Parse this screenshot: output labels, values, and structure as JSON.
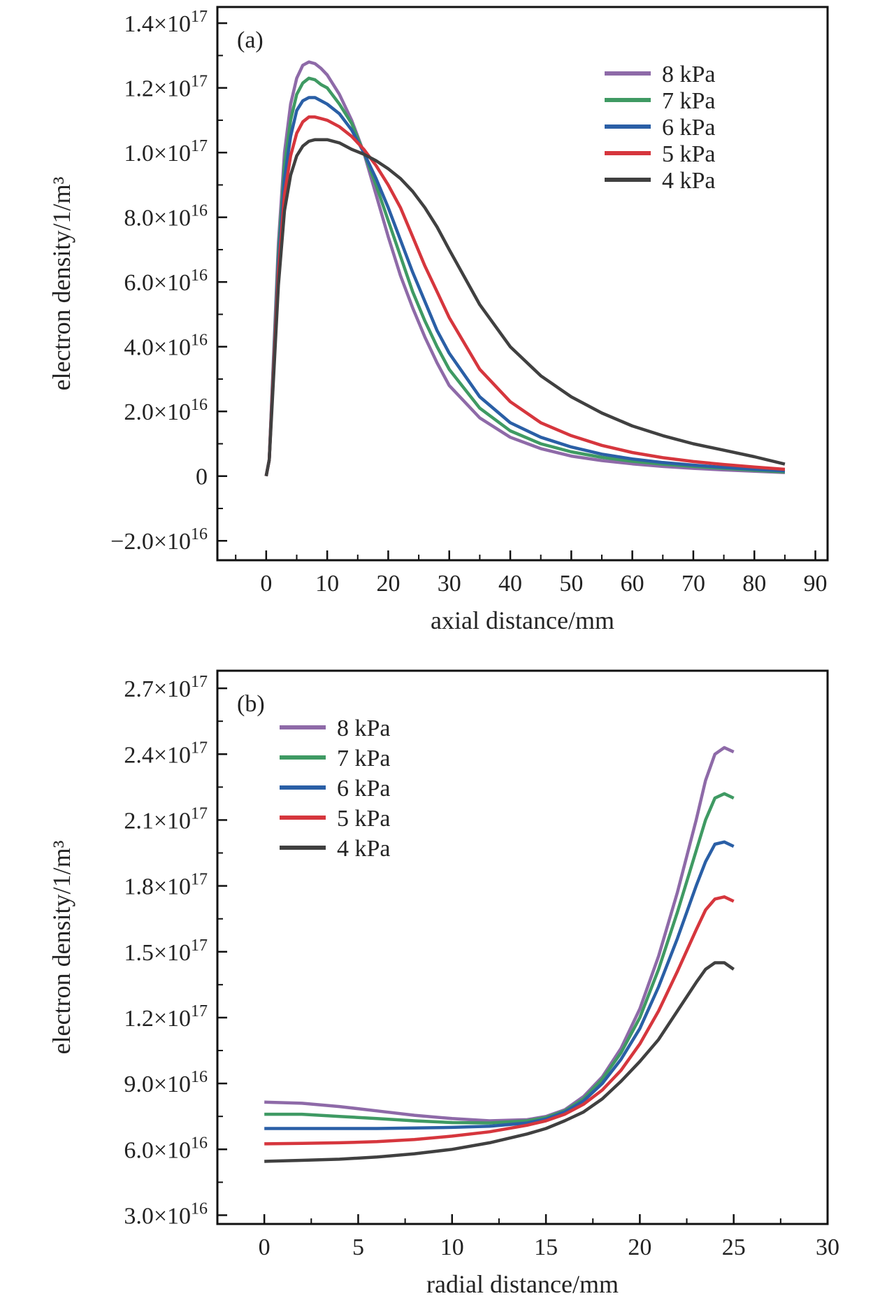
{
  "colors": {
    "8 kPa": "#8e6aa8",
    "7 kPa": "#3f9a63",
    "6 kPa": "#2a5fa6",
    "5 kPa": "#d6363d",
    "4 kPa": "#404040"
  },
  "chart_data": [
    {
      "type": "line",
      "panel_label": "(a)",
      "xlabel": "axial distance/mm",
      "ylabel": "electron density/1/m³",
      "xlim": [
        -8,
        92
      ],
      "ylim": [
        -2.6e+16,
        1.45e+17
      ],
      "xticks": [
        0,
        10,
        20,
        30,
        40,
        50,
        60,
        70,
        80,
        90
      ],
      "xtick_labels": [
        "0",
        "10",
        "20",
        "30",
        "40",
        "50",
        "60",
        "70",
        "80",
        "90"
      ],
      "yticks": [
        -2e+16,
        0,
        2e+16,
        4e+16,
        6e+16,
        8e+16,
        1e+17,
        1.2e+17,
        1.4e+17
      ],
      "ytick_labels": [
        {
          "mant": "−2.0×10",
          "exp": "16"
        },
        {
          "mant": "0",
          "exp": ""
        },
        {
          "mant": "2.0×10",
          "exp": "16"
        },
        {
          "mant": "4.0×10",
          "exp": "16"
        },
        {
          "mant": "6.0×10",
          "exp": "16"
        },
        {
          "mant": "8.0×10",
          "exp": "16"
        },
        {
          "mant": "1.0×10",
          "exp": "17"
        },
        {
          "mant": "1.2×10",
          "exp": "17"
        },
        {
          "mant": "1.4×10",
          "exp": "17"
        }
      ],
      "legend_position": "top-right",
      "series": [
        {
          "name": "8 kPa",
          "x": [
            0,
            0.5,
            1,
            2,
            3,
            4,
            5,
            6,
            7,
            8,
            9,
            10,
            12,
            14,
            16,
            18,
            20,
            22,
            24,
            26,
            28,
            30,
            35,
            40,
            45,
            50,
            55,
            60,
            65,
            70,
            75,
            80,
            85
          ],
          "y": [
            0,
            5000000000000000.0,
            2.8e+16,
            7.2e+16,
            1e+17,
            1.15e+17,
            1.23e+17,
            1.27e+17,
            1.28e+17,
            1.275e+17,
            1.26e+17,
            1.24e+17,
            1.18e+17,
            1.1e+17,
            1e+17,
            8.7e+16,
            7.4e+16,
            6.2e+16,
            5.2e+16,
            4.3e+16,
            3.5e+16,
            2.8e+16,
            1.8e+16,
            1.2e+16,
            8500000000000000.0,
            6200000000000000.0,
            4800000000000000.0,
            3800000000000000.0,
            3000000000000000.0,
            2400000000000000.0,
            1900000000000000.0,
            1500000000000000.0,
            1100000000000000.0
          ]
        },
        {
          "name": "7 kPa",
          "x": [
            0,
            0.5,
            1,
            2,
            3,
            4,
            5,
            6,
            7,
            8,
            9,
            10,
            12,
            14,
            16,
            18,
            20,
            22,
            24,
            26,
            28,
            30,
            35,
            40,
            45,
            50,
            55,
            60,
            65,
            70,
            75,
            80,
            85
          ],
          "y": [
            0,
            5000000000000000.0,
            2.7e+16,
            6.9e+16,
            9.6e+16,
            1.1e+17,
            1.18e+17,
            1.215e+17,
            1.23e+17,
            1.225e+17,
            1.21e+17,
            1.2e+17,
            1.15e+17,
            1.09e+17,
            1e+17,
            9e+16,
            7.9e+16,
            6.8e+16,
            5.7e+16,
            4.8e+16,
            4e+16,
            3.3e+16,
            2.1e+16,
            1.4e+16,
            1e+16,
            7500000000000000.0,
            5800000000000000.0,
            4600000000000000.0,
            3700000000000000.0,
            3000000000000000.0,
            2400000000000000.0,
            1800000000000000.0,
            1300000000000000.0
          ]
        },
        {
          "name": "6 kPa",
          "x": [
            0,
            0.5,
            1,
            2,
            3,
            4,
            5,
            6,
            7,
            8,
            9,
            10,
            12,
            14,
            16,
            18,
            20,
            22,
            24,
            26,
            28,
            30,
            35,
            40,
            45,
            50,
            55,
            60,
            65,
            70,
            75,
            80,
            85
          ],
          "y": [
            0,
            5000000000000000.0,
            2.6e+16,
            6.6e+16,
            9.2e+16,
            1.05e+17,
            1.13e+17,
            1.16e+17,
            1.17e+17,
            1.17e+17,
            1.16e+17,
            1.15e+17,
            1.12e+17,
            1.07e+17,
            1e+17,
            9.2e+16,
            8.3e+16,
            7.3e+16,
            6.3e+16,
            5.4e+16,
            4.5e+16,
            3.8e+16,
            2.45e+16,
            1.65e+16,
            1.2e+16,
            9000000000000000.0,
            6800000000000000.0,
            5300000000000000.0,
            4200000000000000.0,
            3400000000000000.0,
            2700000000000000.0,
            2100000000000000.0,
            1600000000000000.0
          ]
        },
        {
          "name": "5 kPa",
          "x": [
            0,
            0.5,
            1,
            2,
            3,
            4,
            5,
            6,
            7,
            8,
            9,
            10,
            12,
            14,
            16,
            18,
            20,
            22,
            24,
            26,
            28,
            30,
            35,
            40,
            45,
            50,
            55,
            60,
            65,
            70,
            75,
            80,
            85
          ],
          "y": [
            0,
            5000000000000000.0,
            2.5e+16,
            6.3e+16,
            8.7e+16,
            9.9e+16,
            1.06e+17,
            1.095e+17,
            1.11e+17,
            1.11e+17,
            1.105e+17,
            1.1e+17,
            1.08e+17,
            1.05e+17,
            1.01e+17,
            9.6e+16,
            9e+16,
            8.3e+16,
            7.4e+16,
            6.5e+16,
            5.7e+16,
            4.9e+16,
            3.3e+16,
            2.3e+16,
            1.65e+16,
            1.25e+16,
            9500000000000000.0,
            7300000000000000.0,
            5700000000000000.0,
            4500000000000000.0,
            3600000000000000.0,
            2800000000000000.0,
            2100000000000000.0
          ]
        },
        {
          "name": "4 kPa",
          "x": [
            0,
            0.5,
            1,
            2,
            3,
            4,
            5,
            6,
            7,
            8,
            9,
            10,
            12,
            14,
            16,
            18,
            20,
            22,
            24,
            26,
            28,
            30,
            35,
            40,
            45,
            50,
            55,
            60,
            65,
            70,
            75,
            80,
            85
          ],
          "y": [
            0,
            5000000000000000.0,
            2.3e+16,
            5.9e+16,
            8.2e+16,
            9.3e+16,
            9.9e+16,
            1.02e+17,
            1.035e+17,
            1.04e+17,
            1.04e+17,
            1.04e+17,
            1.03e+17,
            1.01e+17,
            9.95e+16,
            9.75e+16,
            9.5e+16,
            9.2e+16,
            8.8e+16,
            8.3e+16,
            7.7e+16,
            7e+16,
            5.3e+16,
            4e+16,
            3.1e+16,
            2.45e+16,
            1.95e+16,
            1.55e+16,
            1.25e+16,
            1e+16,
            8000000000000000.0,
            6000000000000000.0,
            3700000000000000.0
          ]
        }
      ]
    },
    {
      "type": "line",
      "panel_label": "(b)",
      "xlabel": "radial distance/mm",
      "ylabel": "electron density/1/m³",
      "xlim": [
        -2.5,
        30
      ],
      "ylim": [
        2.6e+16,
        2.78e+17
      ],
      "xticks": [
        0,
        5,
        10,
        15,
        20,
        25,
        30
      ],
      "xtick_labels": [
        "0",
        "5",
        "10",
        "15",
        "20",
        "25",
        "30"
      ],
      "yticks": [
        3e+16,
        6e+16,
        9e+16,
        1.2e+17,
        1.5e+17,
        1.8e+17,
        2.1e+17,
        2.4e+17,
        2.7e+17
      ],
      "ytick_labels": [
        {
          "mant": "3.0×10",
          "exp": "16"
        },
        {
          "mant": "6.0×10",
          "exp": "16"
        },
        {
          "mant": "9.0×10",
          "exp": "16"
        },
        {
          "mant": "1.2×10",
          "exp": "17"
        },
        {
          "mant": "1.5×10",
          "exp": "17"
        },
        {
          "mant": "1.8×10",
          "exp": "17"
        },
        {
          "mant": "2.1×10",
          "exp": "17"
        },
        {
          "mant": "2.4×10",
          "exp": "17"
        },
        {
          "mant": "2.7×10",
          "exp": "17"
        }
      ],
      "legend_position": "top-left",
      "series": [
        {
          "name": "8 kPa",
          "x": [
            0,
            2,
            4,
            6,
            8,
            10,
            12,
            14,
            15,
            16,
            17,
            18,
            19,
            20,
            21,
            22,
            23,
            23.5,
            24,
            24.5,
            25
          ],
          "y": [
            8.15e+16,
            8.1e+16,
            7.95e+16,
            7.75e+16,
            7.55e+16,
            7.4e+16,
            7.3e+16,
            7.35e+16,
            7.5e+16,
            7.8e+16,
            8.4e+16,
            9.3e+16,
            1.06e+17,
            1.24e+17,
            1.48e+17,
            1.77e+17,
            2.1e+17,
            2.28e+17,
            2.4e+17,
            2.43e+17,
            2.41e+17
          ]
        },
        {
          "name": "7 kPa",
          "x": [
            0,
            2,
            4,
            6,
            8,
            10,
            12,
            14,
            15,
            16,
            17,
            18,
            19,
            20,
            21,
            22,
            23,
            23.5,
            24,
            24.5,
            25
          ],
          "y": [
            7.6e+16,
            7.6e+16,
            7.5e+16,
            7.4e+16,
            7.3e+16,
            7.22e+16,
            7.2e+16,
            7.3e+16,
            7.45e+16,
            7.75e+16,
            8.3e+16,
            9.2e+16,
            1.04e+17,
            1.2e+17,
            1.42e+17,
            1.68e+17,
            1.96e+17,
            2.1e+17,
            2.2e+17,
            2.22e+17,
            2.2e+17
          ]
        },
        {
          "name": "6 kPa",
          "x": [
            0,
            2,
            4,
            6,
            8,
            10,
            12,
            14,
            15,
            16,
            17,
            18,
            19,
            20,
            21,
            22,
            23,
            23.5,
            24,
            24.5,
            25
          ],
          "y": [
            6.95e+16,
            6.95e+16,
            6.95e+16,
            6.95e+16,
            6.97e+16,
            7e+16,
            7.05e+16,
            7.2e+16,
            7.38e+16,
            7.7e+16,
            8.2e+16,
            9e+16,
            1.01e+17,
            1.15e+17,
            1.34e+17,
            1.56e+17,
            1.8e+17,
            1.91e+17,
            1.99e+17,
            2e+17,
            1.98e+17
          ]
        },
        {
          "name": "5 kPa",
          "x": [
            0,
            2,
            4,
            6,
            8,
            10,
            12,
            14,
            15,
            16,
            17,
            18,
            19,
            20,
            21,
            22,
            23,
            23.5,
            24,
            24.5,
            25
          ],
          "y": [
            6.25e+16,
            6.27e+16,
            6.3e+16,
            6.35e+16,
            6.45e+16,
            6.6e+16,
            6.8e+16,
            7.1e+16,
            7.3e+16,
            7.6e+16,
            8.05e+16,
            8.7e+16,
            9.6e+16,
            1.08e+17,
            1.23e+17,
            1.41e+17,
            1.6e+17,
            1.69e+17,
            1.74e+17,
            1.75e+17,
            1.73e+17
          ]
        },
        {
          "name": "4 kPa",
          "x": [
            0,
            2,
            4,
            6,
            8,
            10,
            12,
            14,
            15,
            16,
            17,
            18,
            19,
            20,
            21,
            22,
            23,
            23.5,
            24,
            24.5,
            25
          ],
          "y": [
            5.45e+16,
            5.5e+16,
            5.55e+16,
            5.65e+16,
            5.8e+16,
            6e+16,
            6.3e+16,
            6.7e+16,
            6.95e+16,
            7.3e+16,
            7.7e+16,
            8.3e+16,
            9.1e+16,
            1e+17,
            1.1e+17,
            1.23e+17,
            1.36e+17,
            1.42e+17,
            1.45e+17,
            1.45e+17,
            1.42e+17
          ]
        }
      ]
    }
  ]
}
